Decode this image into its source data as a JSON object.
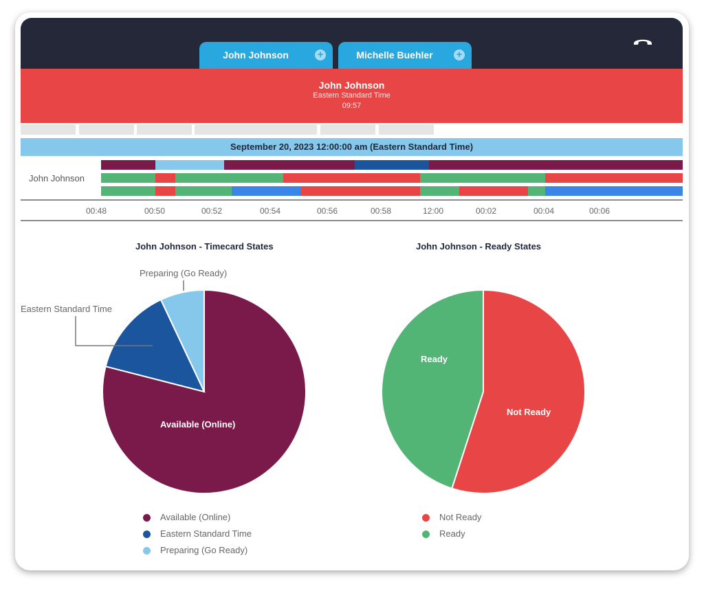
{
  "header": {
    "tabs": [
      {
        "label": "John Johnson"
      },
      {
        "label": "Michelle Buehler"
      }
    ],
    "icons": {
      "tab_action": "plus-circle-icon",
      "hangup": "phone-hangup-icon"
    }
  },
  "banner": {
    "name": "John Johnson",
    "timezone": "Eastern Standard Time",
    "time": "09:57"
  },
  "timeline": {
    "date_label": "September 20, 2023 12:00:00 am (Eastern Standard Time)",
    "agent": "John Johnson",
    "ticks": [
      "00:48",
      "00:50",
      "00:52",
      "00:54",
      "00:56",
      "00:58",
      "12:00",
      "00:02",
      "00:04",
      "00:06"
    ]
  },
  "colors": {
    "available": "#7a1a4a",
    "eastern": "#1a559e",
    "preparing": "#86c8eb",
    "not_ready": "#e84547",
    "ready": "#52b575",
    "bright_blue": "#3a86e8",
    "header_dark": "#252838",
    "tab_blue": "#29a8df"
  },
  "chart_data": [
    {
      "type": "pie",
      "title": "John Johnson - Timecard States",
      "series": [
        {
          "name": "Available (Online)",
          "value": 79,
          "color": "#7a1a4a"
        },
        {
          "name": "Eastern Standard Time",
          "value": 14,
          "color": "#1a559e"
        },
        {
          "name": "Preparing (Go Ready)",
          "value": 7,
          "color": "#86c8eb"
        }
      ],
      "legend_position": "bottom",
      "annotations": [
        "Available (Online)",
        "Eastern Standard Time",
        "Preparing (Go Ready)"
      ]
    },
    {
      "type": "pie",
      "title": "John Johnson - Ready States",
      "series": [
        {
          "name": "Not Ready",
          "value": 55,
          "color": "#e84547"
        },
        {
          "name": "Ready",
          "value": 45,
          "color": "#52b575"
        }
      ],
      "legend_position": "bottom",
      "annotations": [
        "Not Ready",
        "Ready"
      ]
    }
  ]
}
